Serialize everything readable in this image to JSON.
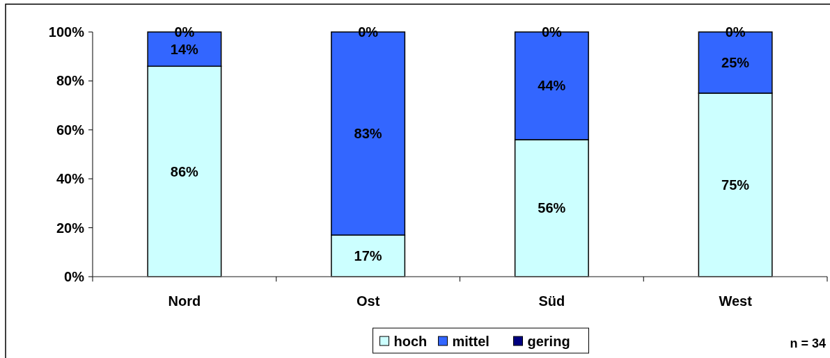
{
  "chart_data": {
    "type": "bar",
    "stacked": true,
    "categories": [
      "Nord",
      "Ost",
      "Süd",
      "West"
    ],
    "series": [
      {
        "name": "hoch",
        "color": "#ccffff",
        "values": [
          86,
          17,
          56,
          75
        ],
        "value_labels": [
          "86%",
          "17%",
          "56%",
          "75%"
        ]
      },
      {
        "name": "mittel",
        "color": "#3366ff",
        "values": [
          14,
          83,
          44,
          25
        ],
        "value_labels": [
          "14%",
          "83%",
          "44%",
          "25%"
        ]
      },
      {
        "name": "gering",
        "color": "#000080",
        "values": [
          0,
          0,
          0,
          0
        ],
        "value_labels": [
          "0%",
          "0%",
          "0%",
          "0%"
        ]
      }
    ],
    "ylim": [
      0,
      100
    ],
    "yticks": [
      {
        "value": 0,
        "label": "0%"
      },
      {
        "value": 20,
        "label": "20%"
      },
      {
        "value": 40,
        "label": "40%"
      },
      {
        "value": 60,
        "label": "60%"
      },
      {
        "value": 80,
        "label": "80%"
      },
      {
        "value": 100,
        "label": "100%"
      }
    ],
    "grid": false,
    "legend": "bottom",
    "annotations": [
      "n = 34"
    ]
  }
}
